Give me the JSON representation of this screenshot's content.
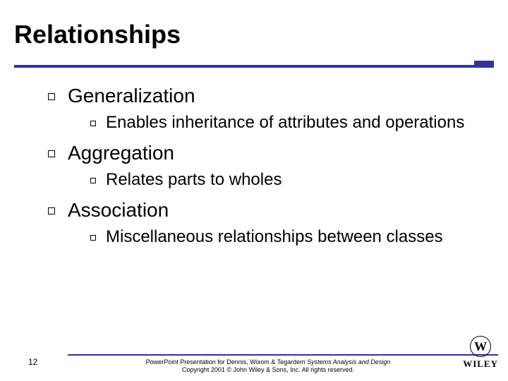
{
  "title": {
    "text": "Relationships",
    "fontsize": 36,
    "color": "#000000"
  },
  "rule": {
    "color": "#333399",
    "thickness": 4
  },
  "accent": {
    "color": "#333399",
    "width": 28,
    "height": 10
  },
  "content": {
    "lvl1_fontsize": 28,
    "lvl2_fontsize": 24,
    "items": [
      {
        "label": "Generalization",
        "sub": [
          {
            "label": "Enables inheritance of attributes and operations"
          }
        ]
      },
      {
        "label": "Aggregation",
        "sub": [
          {
            "label": "Relates parts to wholes"
          }
        ]
      },
      {
        "label": "Association",
        "sub": [
          {
            "label": "Miscellaneous relationships between classes"
          }
        ]
      }
    ]
  },
  "footer": {
    "page": "12",
    "line1_plain": "PowerPoint Presentation for Dennis, Wixom & Tegardem ",
    "line1_ital": "Systems Analysis and Design",
    "line2": "Copyright 2001 © John Wiley & Sons, Inc. All rights reserved.",
    "fontsize": 9,
    "rule_color": "#333399",
    "rule_thickness": 2
  },
  "logo": {
    "glyph": "W",
    "name": "WILEY",
    "glyph_fontsize": 18,
    "name_fontsize": 13
  },
  "background_color": "#ffffff"
}
